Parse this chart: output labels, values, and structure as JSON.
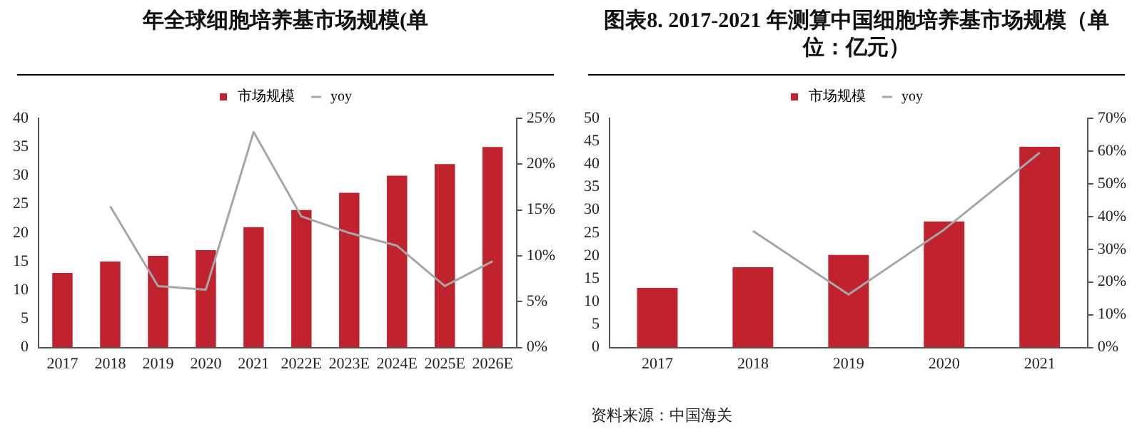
{
  "chart_data": [
    {
      "type": "bar",
      "title": "年全球细胞培养基市场规模(单",
      "categories": [
        "2017",
        "2018",
        "2019",
        "2020",
        "2021",
        "2022E",
        "2023E",
        "2024E",
        "2025E",
        "2026E"
      ],
      "series": [
        {
          "name": "市场规模",
          "color": "#c0232e",
          "values": [
            13,
            15,
            16,
            17,
            21,
            24,
            27,
            30,
            32,
            35
          ]
        },
        {
          "name": "yoy",
          "type": "line",
          "axis": "y2",
          "color": "#a6a6a6",
          "values": [
            null,
            15.4,
            6.7,
            6.3,
            23.5,
            14.3,
            12.5,
            11.1,
            6.7,
            9.4
          ]
        }
      ],
      "ylim": [
        0,
        40
      ],
      "yticks": [
        0,
        5,
        10,
        15,
        20,
        25,
        30,
        35,
        40
      ],
      "y2lim": [
        0,
        25
      ],
      "y2ticks": [
        {
          "value": 0,
          "label": "0%"
        },
        {
          "value": 5,
          "label": "5%"
        },
        {
          "value": 10,
          "label": "10%"
        },
        {
          "value": 15,
          "label": "15%"
        },
        {
          "value": 20,
          "label": "20%"
        },
        {
          "value": 25,
          "label": "25%"
        }
      ],
      "legend": "top",
      "marker": "none",
      "grid": false
    },
    {
      "type": "bar",
      "title": "图表8.   2017-2021 年测算中国细胞培养基市场规模（单位：亿元）",
      "categories": [
        "2017",
        "2018",
        "2019",
        "2020",
        "2021"
      ],
      "series": [
        {
          "name": "市场规模",
          "color": "#c0232e",
          "values": [
            13,
            17.5,
            20.2,
            27.5,
            43.8
          ]
        },
        {
          "name": "yoy",
          "type": "line",
          "axis": "y2",
          "color": "#a6a6a6",
          "values": [
            null,
            35.6,
            16.2,
            36,
            59.5
          ]
        }
      ],
      "ylim": [
        0,
        50
      ],
      "yticks": [
        0,
        5,
        10,
        15,
        20,
        25,
        30,
        35,
        40,
        45,
        50
      ],
      "y2lim": [
        0,
        70
      ],
      "y2ticks": [
        {
          "value": 0,
          "label": "0%"
        },
        {
          "value": 10,
          "label": "10%"
        },
        {
          "value": 20,
          "label": "20%"
        },
        {
          "value": 30,
          "label": "30%"
        },
        {
          "value": 40,
          "label": "40%"
        },
        {
          "value": 50,
          "label": "50%"
        },
        {
          "value": 60,
          "label": "60%"
        },
        {
          "value": 70,
          "label": "70%"
        }
      ],
      "legend": "top",
      "marker": "none",
      "grid": false,
      "annotations": [
        "资料来源：中国海关"
      ]
    }
  ]
}
